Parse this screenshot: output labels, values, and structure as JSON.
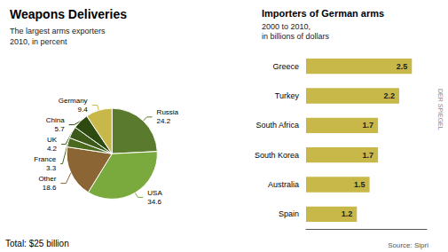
{
  "chart_data": [
    {
      "type": "pie",
      "title": "Weapons Deliveries",
      "subtitle": "The largest arms exporters\n2010, in percent",
      "categories": [
        "Russia",
        "USA",
        "Other",
        "France",
        "UK",
        "China",
        "Germany"
      ],
      "values": [
        24.2,
        34.6,
        18.6,
        3.3,
        4.2,
        5.7,
        9.4
      ],
      "colors": [
        "#5a7a2e",
        "#7aaa3e",
        "#8b6534",
        "#4a6a1e",
        "#3d5a1a",
        "#2d4a10",
        "#c8b84a"
      ],
      "data_labels": true,
      "annotations": [
        "Total: $25 billion"
      ]
    },
    {
      "type": "bar",
      "orientation": "horizontal",
      "title": "Importers of German arms",
      "subtitle": "2000 to 2010,\nin billions of dollars",
      "categories": [
        "Greece",
        "Turkey",
        "South Africa",
        "South Korea",
        "Australia",
        "Spain"
      ],
      "values": [
        2.5,
        2.2,
        1.7,
        1.7,
        1.5,
        1.2
      ],
      "color": "#c8b84a",
      "xlim": [
        0,
        2.85
      ],
      "data_labels": true,
      "grid": false,
      "tick_labels": "y",
      "annotations": [
        "Source: Sipri",
        "DER SPIEGEL"
      ]
    }
  ]
}
